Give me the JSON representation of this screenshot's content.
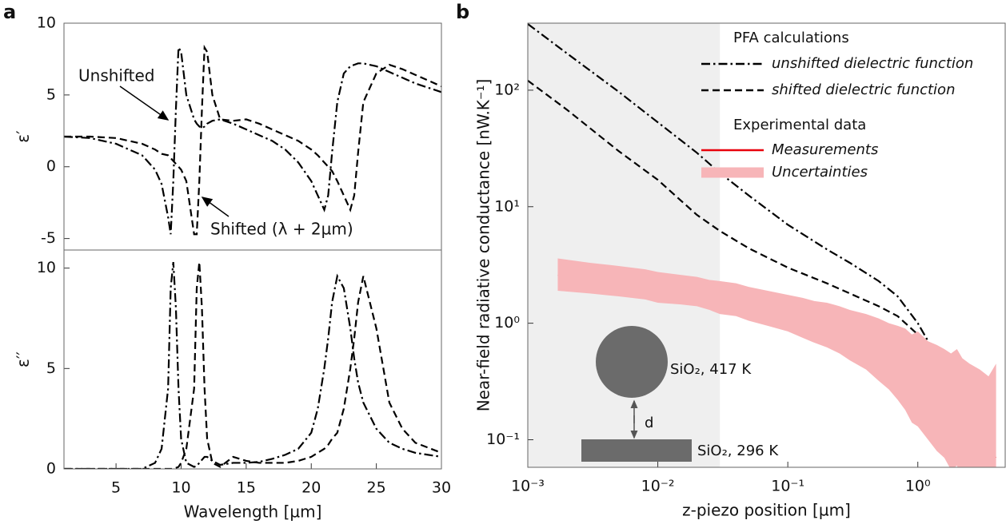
{
  "chart_data": [
    {
      "type": "line",
      "panel_label": "a",
      "ylabel": "ε′",
      "xlim": [
        1,
        30
      ],
      "ylim": [
        -5.8,
        10
      ],
      "yticks": [
        10,
        5,
        0,
        -5
      ],
      "x": [
        1,
        3,
        5,
        7,
        8,
        8.5,
        9,
        9.2,
        9.4,
        9.6,
        9.8,
        10,
        10.4,
        11,
        11.2,
        11.4,
        11.6,
        11.8,
        12,
        12.4,
        13,
        14,
        15,
        16,
        17,
        18,
        19,
        20,
        20.5,
        21,
        21.3,
        21.6,
        22,
        22.5,
        23,
        23.3,
        23.6,
        24,
        25,
        26,
        27,
        28,
        30
      ],
      "series": [
        {
          "style": "dashdot",
          "color": "#000000",
          "values": [
            2.1,
            2.0,
            1.6,
            0.8,
            -0.2,
            -1.2,
            -3.5,
            -4.7,
            -1,
            4,
            8.3,
            8,
            5,
            3.3,
            3,
            2.8,
            2.7,
            2.8,
            3.0,
            3.2,
            3.3,
            3.0,
            2.6,
            2.2,
            1.8,
            1.2,
            0.3,
            -1.0,
            -2,
            -3.0,
            -2,
            1,
            4.5,
            6.5,
            7.0,
            7.1,
            7.2,
            7.2,
            7.0,
            6.6,
            6.2,
            5.8,
            5.2
          ]
        },
        {
          "style": "dashed",
          "color": "#000000",
          "values": [
            2.1,
            2.1,
            2.0,
            1.6,
            1.2,
            0.9,
            0.8,
            0.6,
            0.4,
            0.2,
            0,
            -0.2,
            -1.0,
            -4.7,
            -4.7,
            -1,
            4,
            8.3,
            8,
            5,
            3.3,
            3.2,
            3.3,
            3.0,
            2.6,
            2.2,
            1.8,
            1.2,
            0.8,
            0.3,
            0,
            -0.3,
            -1.0,
            -2,
            -3.0,
            -2,
            1,
            4.5,
            6.5,
            7.1,
            6.8,
            6.4,
            5.6
          ]
        }
      ],
      "annotations": [
        "Unshifted",
        "Shifted (λ + 2µm)"
      ]
    },
    {
      "type": "line",
      "ylabel": "ε′′",
      "xlabel": "Wavelength [µm]",
      "xlim": [
        1,
        30
      ],
      "ylim": [
        0,
        10.9
      ],
      "yticks": [
        0,
        5,
        10
      ],
      "xticks": [
        5,
        10,
        15,
        20,
        25,
        30
      ],
      "x": [
        1,
        3,
        5,
        7,
        8,
        8.5,
        9,
        9.2,
        9.4,
        9.6,
        9.8,
        10,
        10.4,
        11,
        11.2,
        11.4,
        11.6,
        11.8,
        12,
        12.4,
        13,
        14,
        15,
        16,
        17,
        18,
        19,
        20,
        20.5,
        21,
        21.3,
        21.6,
        22,
        22.5,
        23,
        23.3,
        23.6,
        24,
        25,
        26,
        27,
        28,
        30
      ],
      "series": [
        {
          "style": "dashdot",
          "color": "#000000",
          "values": [
            0,
            0,
            0,
            0,
            0.3,
            1,
            4,
            9,
            10.3,
            8,
            4,
            1.5,
            0.3,
            0.1,
            0.15,
            0.3,
            0.45,
            0.6,
            0.6,
            0.4,
            0.2,
            0.3,
            0.3,
            0.35,
            0.5,
            0.7,
            1.0,
            1.8,
            3,
            5,
            6.5,
            8.3,
            9.6,
            9,
            7,
            5.5,
            4.3,
            3.3,
            2,
            1.3,
            1,
            0.8,
            0.6
          ]
        },
        {
          "style": "dashed",
          "color": "#000000",
          "values": [
            0,
            0,
            0,
            0,
            0,
            0,
            0,
            0,
            0,
            0.05,
            0.1,
            0.3,
            1,
            4,
            9,
            10.3,
            8,
            4,
            1.5,
            0.3,
            0.1,
            0.6,
            0.4,
            0.3,
            0.3,
            0.3,
            0.4,
            0.6,
            0.8,
            1,
            1.2,
            1.5,
            1.8,
            3,
            5,
            6.5,
            8.3,
            9.6,
            7,
            3.3,
            2,
            1.3,
            0.8
          ]
        }
      ]
    },
    {
      "type": "line",
      "panel_label": "b",
      "ylabel": "Near-field radiative conductance [nW.K⁻¹]",
      "xlabel": "z-piezo position [µm]",
      "xscale": "log",
      "yscale": "log",
      "xlim": [
        0.001,
        4.7
      ],
      "ylim": [
        0.058,
        376
      ],
      "shade_xlim": [
        0.001,
        0.03
      ],
      "xticks": [
        {
          "value": 0.001,
          "label": "10⁻³"
        },
        {
          "value": 0.01,
          "label": "10⁻²"
        },
        {
          "value": 0.1,
          "label": "10⁻¹"
        },
        {
          "value": 1,
          "label": "10⁰"
        }
      ],
      "yticks": [
        {
          "value": 0.1,
          "label": "10⁻¹"
        },
        {
          "value": 1,
          "label": "10⁰"
        },
        {
          "value": 10,
          "label": "10¹"
        },
        {
          "value": 100,
          "label": "10²"
        }
      ],
      "legend_groups": [
        "PFA calculations",
        "Experimental data"
      ],
      "series": [
        {
          "name": "unshifted dielectric function",
          "style": "dashdot",
          "color": "#000000",
          "x": [
            0.001,
            0.002,
            0.005,
            0.01,
            0.02,
            0.03,
            0.05,
            0.1,
            0.2,
            0.3,
            0.5,
            0.7,
            1,
            1.3,
            1.6,
            2,
            2.3,
            2.6
          ],
          "values": [
            370,
            207,
            97,
            53,
            29,
            19.5,
            12.5,
            7,
            4.3,
            3.3,
            2.3,
            1.7,
            1.0,
            0.6,
            0.35,
            0.16,
            0.09,
            0.058
          ]
        },
        {
          "name": "shifted dielectric function",
          "style": "dashed",
          "color": "#000000",
          "x": [
            0.001,
            0.002,
            0.005,
            0.01,
            0.02,
            0.03,
            0.05,
            0.1,
            0.2,
            0.3,
            0.5,
            0.7,
            1,
            1.3,
            1.6,
            2,
            2.3,
            2.6
          ],
          "values": [
            121,
            68,
            30,
            17,
            8.5,
            6.2,
            4.4,
            3.0,
            2.2,
            1.8,
            1.4,
            1.15,
            0.8,
            0.5,
            0.3,
            0.13,
            0.075,
            0.05
          ]
        },
        {
          "name": "Measurements",
          "style": "solid",
          "color": "#e8000b",
          "x": [
            0.0017,
            0.003,
            0.005,
            0.008,
            0.01,
            0.015,
            0.02,
            0.025,
            0.03,
            0.04,
            0.05,
            0.07,
            0.1,
            0.13,
            0.16,
            0.2,
            0.25,
            0.3,
            0.4,
            0.5,
            0.6,
            0.7,
            0.8,
            0.9,
            1,
            1.2,
            1.4,
            1.6,
            1.8,
            2,
            2.2,
            2.5,
            3,
            3.5,
            4
          ],
          "values": [
            2.6,
            2.45,
            2.3,
            2.15,
            2.05,
            1.95,
            1.85,
            1.7,
            1.62,
            1.55,
            1.45,
            1.3,
            1.15,
            1.05,
            0.95,
            0.9,
            0.8,
            0.72,
            0.62,
            0.55,
            0.48,
            0.42,
            0.38,
            0.3,
            0.33,
            0.25,
            0.2,
            0.18,
            0.14,
            0.16,
            0.11,
            0.1,
            0.08,
            0.075,
            0.07
          ]
        },
        {
          "name": "Uncertainties",
          "style": "band",
          "color": "#f7b5b8",
          "x": [
            0.0017,
            0.003,
            0.005,
            0.008,
            0.01,
            0.015,
            0.02,
            0.025,
            0.03,
            0.04,
            0.05,
            0.07,
            0.1,
            0.13,
            0.16,
            0.2,
            0.25,
            0.3,
            0.4,
            0.5,
            0.6,
            0.7,
            0.8,
            0.9,
            1,
            1.2,
            1.4,
            1.6,
            1.8,
            2,
            2.2,
            2.5,
            3,
            3.5,
            4
          ],
          "upper": [
            3.6,
            3.3,
            3.1,
            2.9,
            2.75,
            2.6,
            2.5,
            2.35,
            2.3,
            2.2,
            2.05,
            1.9,
            1.75,
            1.65,
            1.55,
            1.5,
            1.4,
            1.3,
            1.2,
            1.1,
            1.0,
            0.95,
            0.9,
            0.8,
            0.85,
            0.7,
            0.65,
            0.6,
            0.55,
            0.6,
            0.5,
            0.45,
            0.4,
            0.35,
            0.45
          ],
          "lower": [
            1.9,
            1.8,
            1.7,
            1.6,
            1.5,
            1.45,
            1.4,
            1.3,
            1.2,
            1.15,
            1.05,
            0.95,
            0.85,
            0.75,
            0.68,
            0.62,
            0.55,
            0.48,
            0.4,
            0.32,
            0.27,
            0.22,
            0.18,
            0.14,
            0.13,
            0.1,
            0.08,
            0.07,
            0.055,
            0.06,
            0.045,
            0.04,
            0.035,
            0.03,
            0.03
          ]
        }
      ],
      "inset": {
        "sphere_label": "SiO₂, 417 K",
        "plate_label": "SiO₂, 296 K",
        "gap_label": "d"
      }
    }
  ]
}
